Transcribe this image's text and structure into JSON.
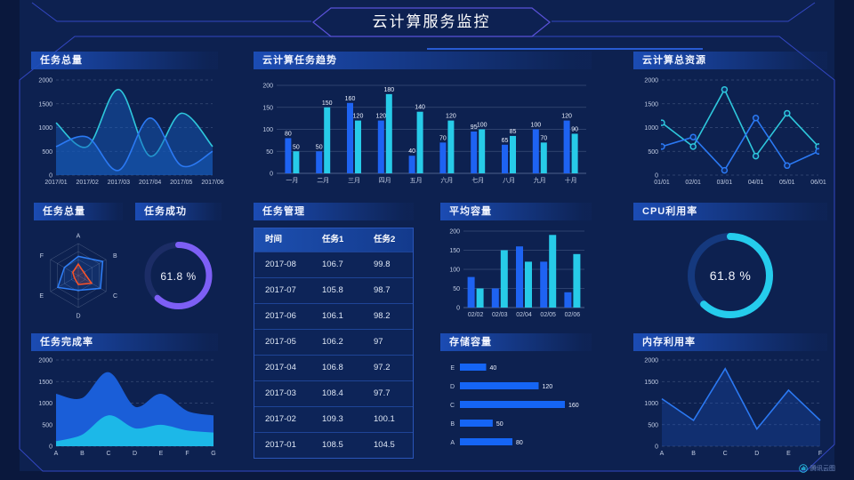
{
  "header": {
    "title": "云计算服务监控"
  },
  "watermark": {
    "label": "腾讯云图"
  },
  "colors": {
    "background": "#0d2150",
    "frame": "#3347c2",
    "badge": "#5a52d8",
    "title_bar": "#1c4eb9",
    "blue": "#1e63f2",
    "cyan": "#27cbe8",
    "purple": "#7d5ff5",
    "orange": "#ff5226"
  },
  "panels": {
    "tasks_total": {
      "title": "任务总量"
    },
    "task_trend": {
      "title": "云计算任务趋势"
    },
    "total_resources": {
      "title": "云计算总资源"
    },
    "radar_tasks": {
      "title": "任务总量"
    },
    "task_success": {
      "title": "任务成功"
    },
    "task_manage": {
      "title": "任务管理"
    },
    "avg_capacity": {
      "title": "平均容量"
    },
    "cpu_usage": {
      "title": "CPU利用率"
    },
    "completion": {
      "title": "任务完成率"
    },
    "storage": {
      "title": "存储容量"
    },
    "memory": {
      "title": "内存利用率"
    }
  },
  "table": {
    "headers": [
      "时间",
      "任务1",
      "任务2"
    ],
    "rows": [
      [
        "2017-08",
        "106.7",
        "99.8"
      ],
      [
        "2017-07",
        "105.8",
        "98.7"
      ],
      [
        "2017-06",
        "106.1",
        "98.2"
      ],
      [
        "2017-05",
        "106.2",
        "97"
      ],
      [
        "2017-04",
        "106.8",
        "97.2"
      ],
      [
        "2017-03",
        "108.4",
        "97.7"
      ],
      [
        "2017-02",
        "109.3",
        "100.1"
      ],
      [
        "2017-01",
        "108.5",
        "104.5"
      ]
    ]
  },
  "chart_data": [
    {
      "id": "tasks_total",
      "type": "area",
      "title": "任务总量",
      "x": [
        "2017/01",
        "2017/02",
        "2017/03",
        "2017/04",
        "2017/05",
        "2017/06"
      ],
      "series": [
        {
          "name": "series-cyan",
          "color": "#2ec7dc",
          "fill": "rgba(23,94,190,0.45)",
          "values": [
            1100,
            600,
            1800,
            400,
            1300,
            600
          ]
        },
        {
          "name": "series-blue",
          "color": "#2b79f3",
          "fill": "rgba(23,94,190,0.45)",
          "values": [
            600,
            800,
            100,
            1200,
            200,
            500
          ]
        }
      ],
      "ylim": [
        0,
        2000
      ],
      "yticks": [
        0,
        500,
        1000,
        1500,
        2000
      ],
      "grid": "dashed",
      "smooth": true
    },
    {
      "id": "task_trend",
      "type": "bar",
      "title": "云计算任务趋势",
      "categories": [
        "一月",
        "二月",
        "三月",
        "四月",
        "五月",
        "六月",
        "七月",
        "八月",
        "九月",
        "十月"
      ],
      "series": [
        {
          "name": "series-blue",
          "color": "#1e63f2",
          "values": [
            80,
            50,
            160,
            120,
            40,
            70,
            95,
            65,
            100,
            120
          ]
        },
        {
          "name": "series-cyan",
          "color": "#27cbe8",
          "values": [
            50,
            150,
            120,
            180,
            140,
            120,
            100,
            85,
            70,
            90
          ]
        }
      ],
      "ylim": [
        0,
        200
      ],
      "yticks": [
        0,
        50,
        100,
        150,
        200
      ],
      "grid": "solid",
      "bar_labels": true
    },
    {
      "id": "total_resources",
      "type": "line",
      "title": "云计算总资源",
      "x": [
        "01/01",
        "02/01",
        "03/01",
        "04/01",
        "05/01",
        "06/01"
      ],
      "series": [
        {
          "name": "series-cyan",
          "color": "#2ec7dc",
          "values": [
            1100,
            600,
            1800,
            400,
            1300,
            600
          ]
        },
        {
          "name": "series-blue",
          "color": "#2b79f3",
          "values": [
            600,
            800,
            100,
            1200,
            200,
            500
          ]
        }
      ],
      "ylim": [
        0,
        2000
      ],
      "yticks": [
        0,
        500,
        1000,
        1500,
        2000
      ],
      "grid": "dashed",
      "markers": true
    },
    {
      "id": "radar_tasks",
      "type": "radar",
      "title": "任务总量",
      "indicators": [
        "A",
        "B",
        "C",
        "D",
        "E",
        "F"
      ],
      "max": 100,
      "series": [
        {
          "name": "series-blue",
          "color": "#2f7ff7",
          "values": [
            60,
            88,
            80,
            46,
            74,
            50
          ]
        },
        {
          "name": "series-orange",
          "color": "#ff5226",
          "values": [
            36,
            20,
            48,
            28,
            14,
            20
          ]
        }
      ]
    },
    {
      "id": "task_success",
      "type": "donut",
      "title": "任务成功",
      "value": 61.8,
      "label": "61.8 %",
      "color": "#7d5ff5",
      "track": "#1c2d66"
    },
    {
      "id": "avg_capacity",
      "type": "bar",
      "title": "平均容量",
      "categories": [
        "02/02",
        "02/03",
        "02/04",
        "02/05",
        "02/06"
      ],
      "series": [
        {
          "name": "series-blue",
          "color": "#1e63f2",
          "values": [
            80,
            50,
            160,
            120,
            40
          ]
        },
        {
          "name": "series-cyan",
          "color": "#27cbe8",
          "values": [
            50,
            150,
            120,
            190,
            140
          ]
        }
      ],
      "ylim": [
        0,
        200
      ],
      "yticks": [
        0,
        50,
        100,
        150,
        200
      ],
      "grid": "solid",
      "bar_labels": false
    },
    {
      "id": "cpu_usage",
      "type": "donut",
      "title": "CPU利用率",
      "value": 61.8,
      "label": "61.8 %",
      "color": "#25ccec",
      "track": "#15397e"
    },
    {
      "id": "completion",
      "type": "area",
      "title": "任务完成率",
      "x": [
        "A",
        "B",
        "C",
        "D",
        "E",
        "F",
        "G"
      ],
      "series": [
        {
          "name": "series-blue",
          "color": "#1a5ed8",
          "fill": "#1a5ed8",
          "values": [
            1200,
            1100,
            1700,
            900,
            1200,
            800,
            700
          ]
        },
        {
          "name": "series-cyan",
          "color": "#1cb8e8",
          "fill": "#1cb8e8",
          "values": [
            100,
            250,
            700,
            400,
            480,
            350,
            300
          ]
        }
      ],
      "ylim": [
        0,
        2000
      ],
      "yticks": [
        0,
        500,
        1000,
        1500,
        2000
      ],
      "grid": "dashed",
      "smooth": true
    },
    {
      "id": "storage",
      "type": "hbar",
      "title": "存储容量",
      "categories": [
        "E",
        "D",
        "C",
        "B",
        "A"
      ],
      "values": [
        40,
        120,
        160,
        50,
        80
      ],
      "color": "#1565f5",
      "value_labels": true
    },
    {
      "id": "memory",
      "type": "line",
      "title": "内存利用率",
      "x": [
        "A",
        "B",
        "C",
        "D",
        "E",
        "F"
      ],
      "series": [
        {
          "name": "series-blue",
          "color": "#2b79f3",
          "fill": "rgba(28,80,190,0.30)",
          "values": [
            1100,
            600,
            1800,
            400,
            1300,
            600
          ]
        }
      ],
      "ylim": [
        0,
        2000
      ],
      "yticks": [
        0,
        500,
        1000,
        1500,
        2000
      ],
      "grid": "dashed",
      "markers": false
    }
  ]
}
